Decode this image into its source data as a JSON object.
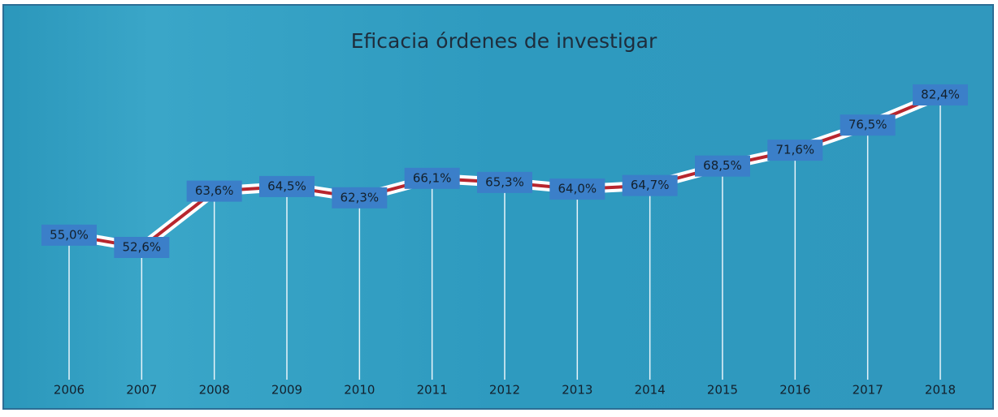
{
  "chart_data": {
    "type": "line",
    "title": "Eficacia órdenes de investigar",
    "categories": [
      "2006",
      "2007",
      "2008",
      "2009",
      "2010",
      "2011",
      "2012",
      "2013",
      "2014",
      "2015",
      "2016",
      "2017",
      "2018"
    ],
    "series": [
      {
        "name": "Eficacia",
        "color": "#b8262e",
        "values": [
          55.0,
          52.6,
          63.6,
          64.5,
          62.3,
          66.1,
          65.3,
          64.0,
          64.7,
          68.5,
          71.6,
          76.5,
          82.4
        ],
        "value_labels": [
          "55,0%",
          "52,6%",
          "63,6%",
          "64,5%",
          "62,3%",
          "66,1%",
          "65,3%",
          "64,0%",
          "64,7%",
          "68,5%",
          "71,6%",
          "76,5%",
          "82,4%"
        ]
      }
    ]
  }
}
